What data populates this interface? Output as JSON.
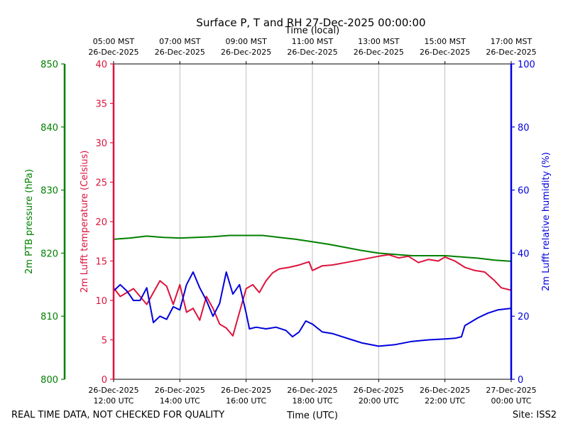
{
  "chart_data": {
    "type": "line",
    "title": "Surface P, T and RH 27-Dec-2025 00:00:00",
    "top_axis_label": "Time (local)",
    "xlabel": "Time (UTC)",
    "footer_left": "REAL TIME DATA, NOT CHECKED FOR QUALITY",
    "footer_right": "Site: ISS2",
    "x_range_hours_utc": [
      12,
      24
    ],
    "bottom_ticks": [
      {
        "hour": 12,
        "l1": "26-Dec-2025",
        "l2": "12:00 UTC"
      },
      {
        "hour": 14,
        "l1": "26-Dec-2025",
        "l2": "14:00 UTC"
      },
      {
        "hour": 16,
        "l1": "26-Dec-2025",
        "l2": "16:00 UTC"
      },
      {
        "hour": 18,
        "l1": "26-Dec-2025",
        "l2": "18:00 UTC"
      },
      {
        "hour": 20,
        "l1": "26-Dec-2025",
        "l2": "20:00 UTC"
      },
      {
        "hour": 22,
        "l1": "26-Dec-2025",
        "l2": "22:00 UTC"
      },
      {
        "hour": 24,
        "l1": "27-Dec-2025",
        "l2": "00:00 UTC"
      }
    ],
    "top_ticks": [
      {
        "hour": 12,
        "l1": "05:00 MST",
        "l2": "26-Dec-2025"
      },
      {
        "hour": 14,
        "l1": "07:00 MST",
        "l2": "26-Dec-2025"
      },
      {
        "hour": 16,
        "l1": "09:00 MST",
        "l2": "26-Dec-2025"
      },
      {
        "hour": 18,
        "l1": "11:00 MST",
        "l2": "26-Dec-2025"
      },
      {
        "hour": 20,
        "l1": "13:00 MST",
        "l2": "26-Dec-2025"
      },
      {
        "hour": 22,
        "l1": "15:00 MST",
        "l2": "26-Dec-2025"
      },
      {
        "hour": 24,
        "l1": "17:00 MST",
        "l2": "26-Dec-2025"
      }
    ],
    "axes": {
      "pressure": {
        "label": "2m PTB pressure (hPa)",
        "color": "#008000",
        "range": [
          800,
          850
        ],
        "ticks": [
          800,
          810,
          820,
          830,
          840,
          850
        ]
      },
      "temperature": {
        "label": "2m Lufft temperature (Celsius)",
        "color": "#dc143c",
        "range": [
          0,
          40
        ],
        "ticks": [
          0,
          5,
          10,
          15,
          20,
          25,
          30,
          35,
          40
        ]
      },
      "humidity": {
        "label": "2m Lufft relative humidity (%)",
        "color": "#0000dd",
        "range": [
          0,
          100
        ],
        "ticks": [
          0,
          20,
          40,
          60,
          80,
          100
        ]
      }
    },
    "series": [
      {
        "name": "2m PTB pressure (hPa)",
        "axis": "pressure",
        "color": "#008000",
        "x": [
          12.0,
          12.5,
          13.0,
          13.5,
          14.0,
          14.5,
          15.0,
          15.5,
          16.0,
          16.5,
          17.0,
          17.5,
          18.0,
          18.5,
          19.0,
          19.5,
          20.0,
          20.5,
          21.0,
          21.5,
          22.0,
          22.5,
          23.0,
          23.5,
          24.0
        ],
        "y": [
          822.2,
          822.4,
          822.7,
          822.5,
          822.4,
          822.5,
          822.6,
          822.8,
          822.8,
          822.8,
          822.5,
          822.2,
          821.8,
          821.4,
          820.9,
          820.4,
          820.0,
          819.8,
          819.6,
          819.6,
          819.6,
          819.4,
          819.2,
          818.9,
          818.7
        ]
      },
      {
        "name": "2m Lufft temperature (Celsius)",
        "axis": "temperature",
        "color": "#dc143c",
        "x": [
          12.0,
          12.2,
          12.4,
          12.6,
          12.8,
          13.0,
          13.2,
          13.4,
          13.6,
          13.8,
          14.0,
          14.2,
          14.4,
          14.6,
          14.8,
          15.0,
          15.2,
          15.4,
          15.6,
          15.8,
          16.0,
          16.2,
          16.4,
          16.6,
          16.8,
          17.0,
          17.3,
          17.6,
          17.9,
          18.0,
          18.3,
          18.6,
          19.0,
          19.5,
          20.0,
          20.3,
          20.6,
          20.9,
          21.2,
          21.5,
          21.8,
          22.0,
          22.3,
          22.6,
          22.9,
          23.2,
          23.5,
          23.7,
          24.0
        ],
        "y": [
          11.6,
          10.5,
          11.0,
          11.5,
          10.5,
          9.5,
          11.0,
          12.5,
          11.8,
          9.5,
          12.0,
          8.5,
          9.0,
          7.5,
          10.5,
          9.0,
          7.0,
          6.5,
          5.5,
          8.5,
          11.5,
          12.0,
          11.0,
          12.5,
          13.5,
          14.0,
          14.2,
          14.5,
          14.9,
          13.8,
          14.4,
          14.5,
          14.8,
          15.2,
          15.6,
          15.8,
          15.4,
          15.6,
          14.8,
          15.2,
          15.0,
          15.5,
          15.0,
          14.2,
          13.8,
          13.6,
          12.5,
          11.6,
          11.3
        ]
      },
      {
        "name": "2m Lufft relative humidity (%)",
        "axis": "humidity",
        "color": "#0000dd",
        "x": [
          12.0,
          12.2,
          12.4,
          12.6,
          12.8,
          13.0,
          13.2,
          13.4,
          13.6,
          13.8,
          14.0,
          14.2,
          14.4,
          14.6,
          14.8,
          15.0,
          15.2,
          15.4,
          15.6,
          15.8,
          16.0,
          16.1,
          16.3,
          16.6,
          16.9,
          17.2,
          17.4,
          17.6,
          17.8,
          18.0,
          18.3,
          18.6,
          18.9,
          19.2,
          19.5,
          20.0,
          20.5,
          21.0,
          21.5,
          22.0,
          22.3,
          22.5,
          22.6,
          23.0,
          23.3,
          23.6,
          24.0
        ],
        "y": [
          28.0,
          30.0,
          28.0,
          25.0,
          25.0,
          29.0,
          18.0,
          20.0,
          19.0,
          23.0,
          22.0,
          30.0,
          34.0,
          29.0,
          25.0,
          20.0,
          24.0,
          34.0,
          27.0,
          30.0,
          21.0,
          16.0,
          16.5,
          16.0,
          16.5,
          15.5,
          13.5,
          15.0,
          18.5,
          17.5,
          15.0,
          14.5,
          13.5,
          12.5,
          11.5,
          10.5,
          11.0,
          12.0,
          12.5,
          12.8,
          13.0,
          13.5,
          17.0,
          19.5,
          21.0,
          22.0,
          22.5
        ]
      }
    ]
  }
}
